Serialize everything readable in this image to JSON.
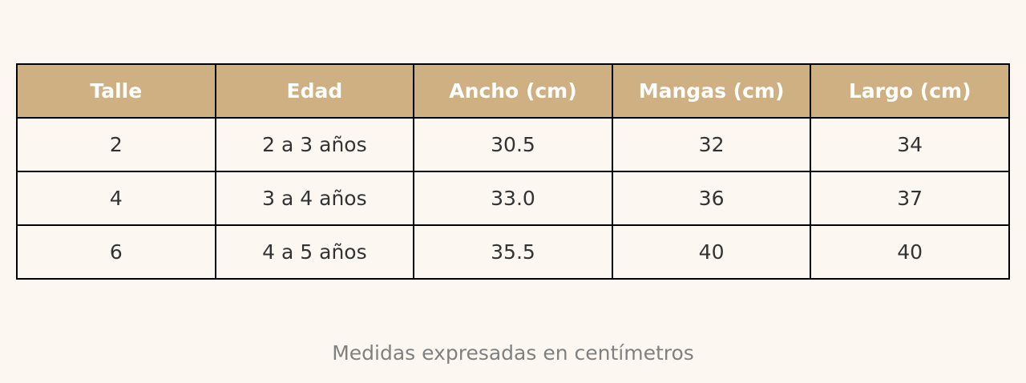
{
  "table": {
    "header": [
      "Talle",
      "Edad",
      "Ancho (cm)",
      "Mangas (cm)",
      "Largo (cm)"
    ],
    "rows": [
      [
        "2",
        "2 a 3 años",
        "30.5",
        "32",
        "34"
      ],
      [
        "4",
        "3 a 4 años",
        "33.0",
        "36",
        "37"
      ],
      [
        "6",
        "4 a 5 años",
        "35.5",
        "40",
        "40"
      ]
    ]
  },
  "caption": "Medidas expresadas en centímetros"
}
